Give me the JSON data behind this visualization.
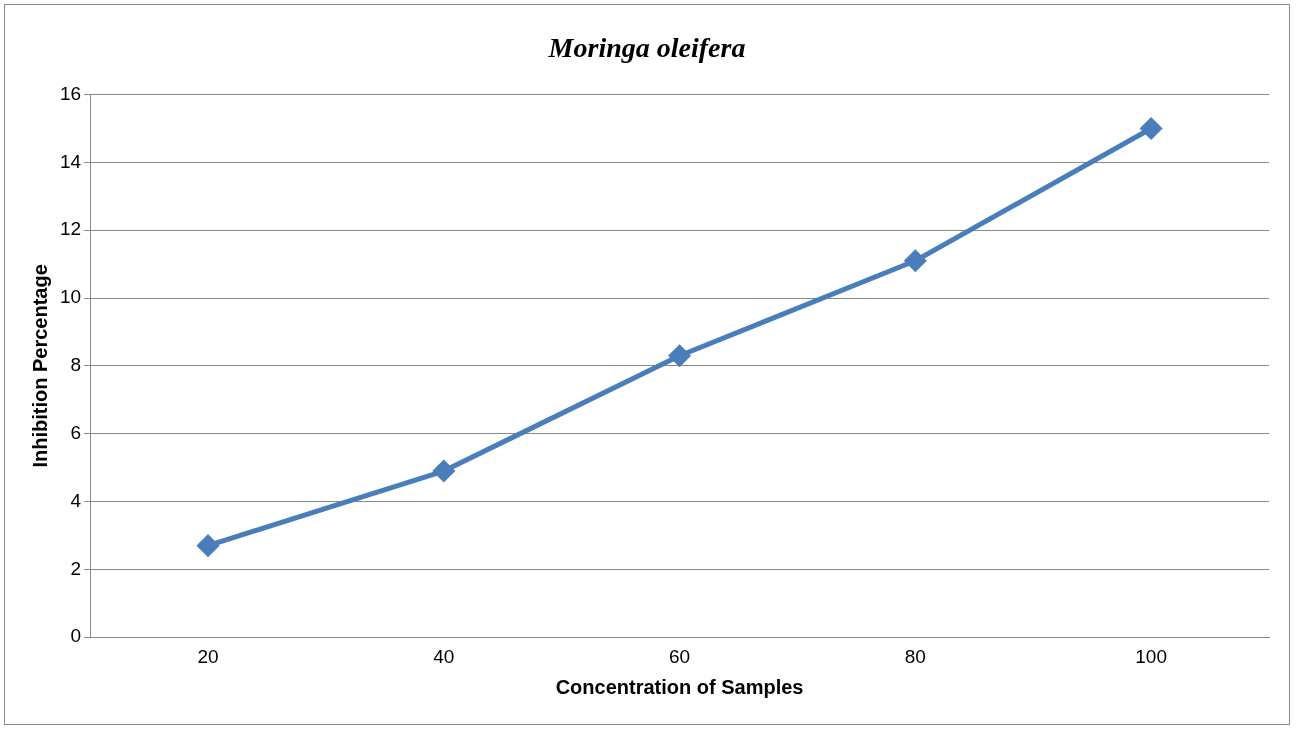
{
  "chart_data": {
    "type": "line",
    "title": "Moringa oleifera",
    "xlabel": "Concentration of Samples",
    "ylabel": "Inhibition Percentage",
    "categories": [
      "20",
      "40",
      "60",
      "80",
      "100"
    ],
    "series": [
      {
        "color": "#4a7ebb",
        "values": [
          2.7,
          4.9,
          8.3,
          11.1,
          15.0
        ]
      }
    ],
    "ylim": [
      0,
      16
    ],
    "yticks": [
      0,
      2,
      4,
      6,
      8,
      10,
      12,
      14,
      16
    ],
    "grid": "y",
    "marker": "diamond",
    "line_style": "solid",
    "legend": false
  }
}
